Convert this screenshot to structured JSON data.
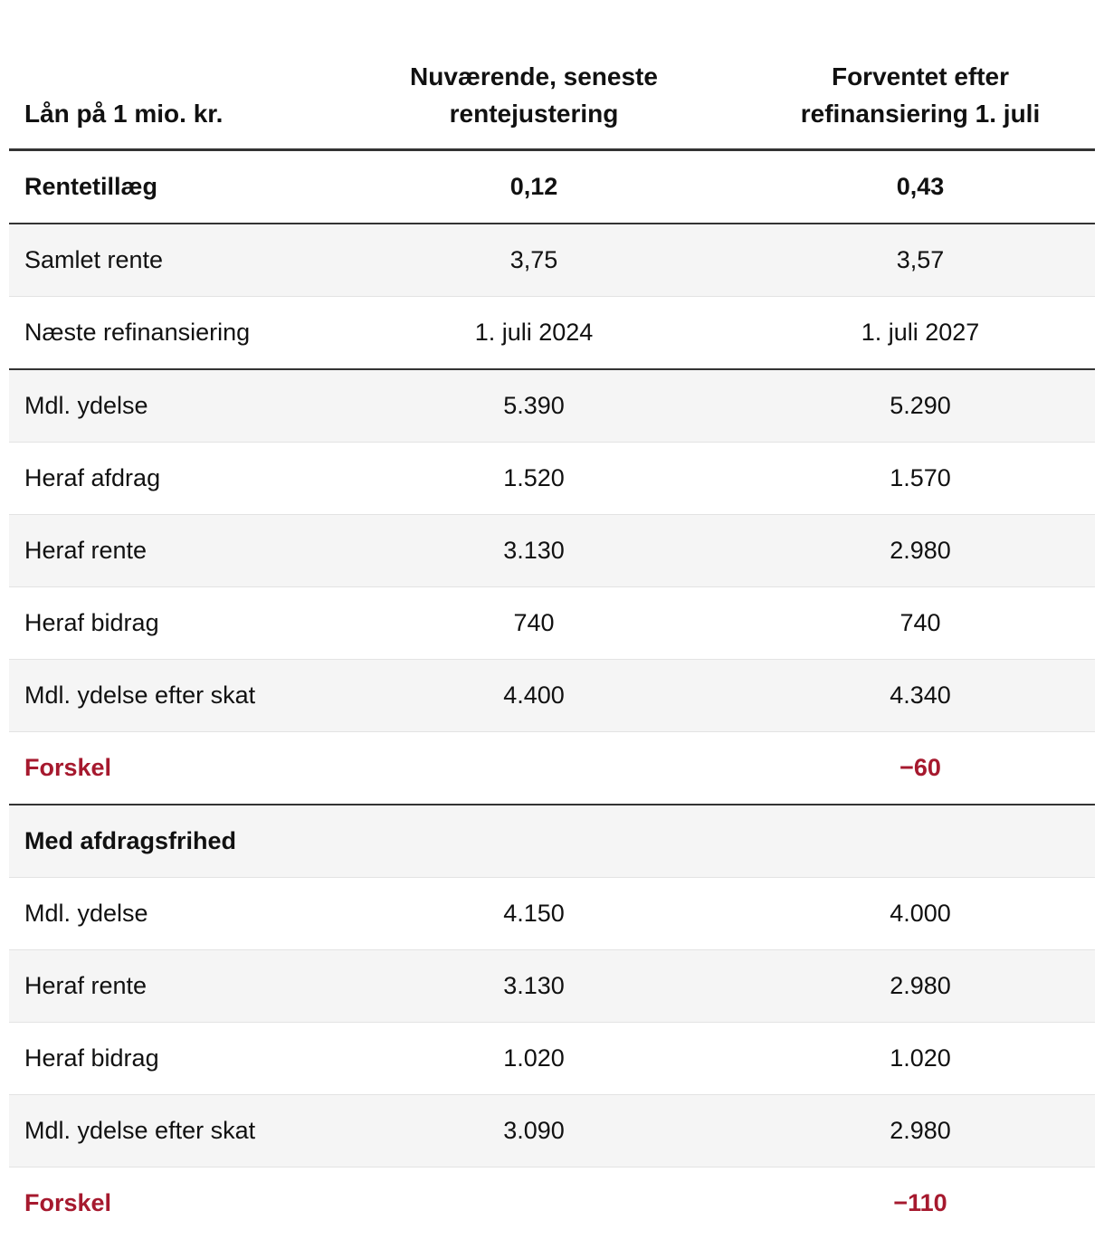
{
  "table": {
    "header": [
      "Lån på 1 mio. kr.",
      "Nuværende, seneste rentejustering",
      "Forventet efter refinansiering 1. juli"
    ],
    "rows": [
      [
        "Rentetillæg",
        "0,12",
        "0,43"
      ],
      [
        "Samlet rente",
        "3,75",
        "3,57"
      ],
      [
        "Næste refinansiering",
        "1. juli 2024",
        "1. juli 2027"
      ],
      [
        "Mdl. ydelse",
        "5.390",
        "5.290"
      ],
      [
        "Heraf afdrag",
        "1.520",
        "1.570"
      ],
      [
        "Heraf rente",
        "3.130",
        "2.980"
      ],
      [
        "Heraf bidrag",
        "740",
        "740"
      ],
      [
        "Mdl. ydelse efter skat",
        "4.400",
        "4.340"
      ],
      [
        "Forskel",
        null,
        "−60"
      ],
      [
        "Med afdragsfrihed",
        null,
        null
      ],
      [
        "Mdl. ydelse",
        "4.150",
        "4.000"
      ],
      [
        "Heraf rente",
        "3.130",
        "2.980"
      ],
      [
        "Heraf bidrag",
        "1.020",
        "1.020"
      ],
      [
        "Mdl. ydelse efter skat",
        "3.090",
        "2.980"
      ],
      [
        "Forskel",
        null,
        "−110"
      ]
    ]
  }
}
